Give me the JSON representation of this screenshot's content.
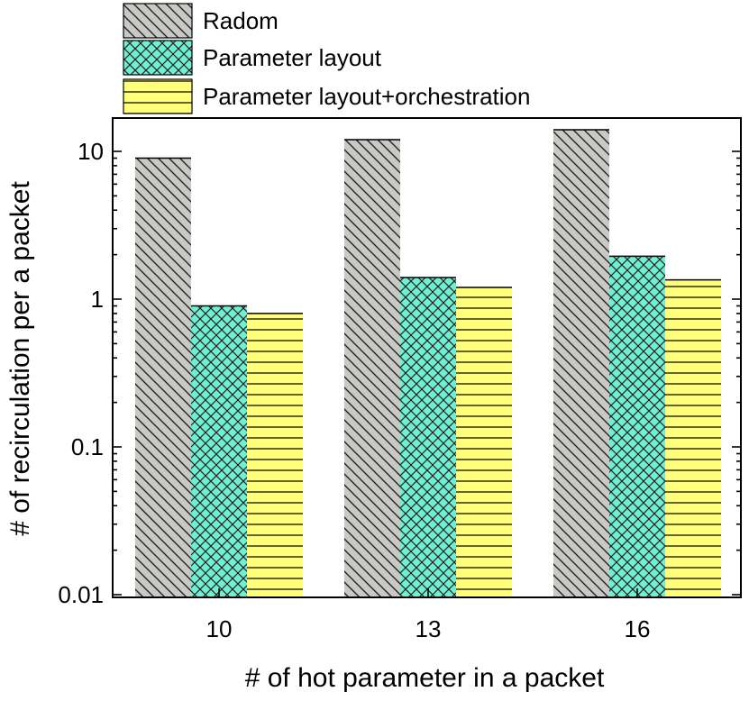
{
  "chart_data": {
    "type": "bar",
    "title": "",
    "xlabel": "# of hot parameter in a packet",
    "ylabel": "# of recirculation per a packet",
    "yscale": "log",
    "ylim": [
      0.01,
      20
    ],
    "ytick_labels": [
      "0.01",
      "0.1",
      "1",
      "10"
    ],
    "yticks": [
      0.01,
      0.1,
      1,
      10
    ],
    "categories": [
      "10",
      "13",
      "16"
    ],
    "series": [
      {
        "name": "Radom",
        "values": [
          9,
          12,
          14
        ],
        "color": "#c8c8c4",
        "pattern": "diagonal-lines"
      },
      {
        "name": "Parameter layout",
        "values": [
          0.9,
          1.4,
          1.95
        ],
        "color": "#6ff0d2",
        "pattern": "crosshatch"
      },
      {
        "name": "Parameter layout+orchestration",
        "values": [
          0.8,
          1.2,
          1.35
        ],
        "color": "#ffff7a",
        "pattern": "horizontal-lines"
      }
    ],
    "legend_position": "top-left-outside",
    "grid": false
  }
}
